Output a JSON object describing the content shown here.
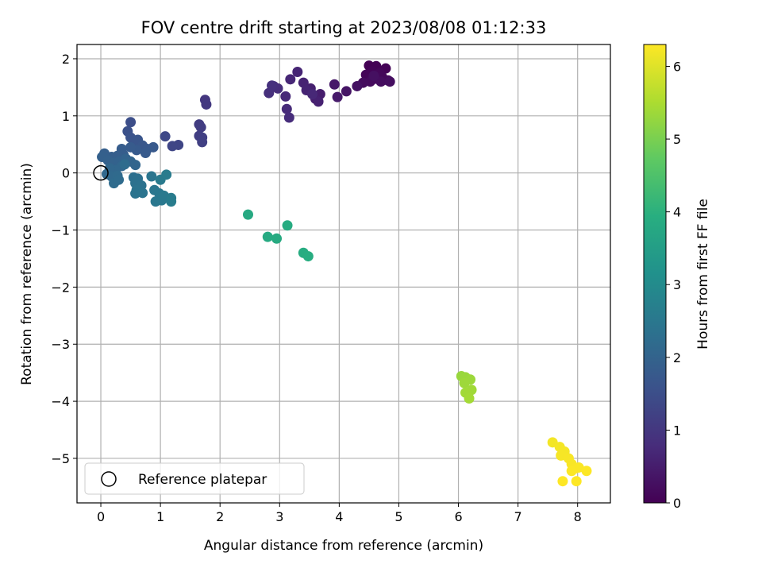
{
  "chart_data": {
    "type": "scatter",
    "title": "FOV centre drift starting at 2023/08/08 01:12:33",
    "xlabel": "Angular distance from reference (arcmin)",
    "ylabel": "Rotation from reference (arcmin)",
    "xlim": [
      -0.4,
      8.55
    ],
    "ylim": [
      -5.78,
      2.25
    ],
    "x_ticks": [
      0,
      1,
      2,
      3,
      4,
      5,
      6,
      7,
      8
    ],
    "y_ticks": [
      -5,
      -4,
      -3,
      -2,
      -1,
      0,
      1,
      2
    ],
    "grid": true,
    "colormap": "viridis",
    "colorbar": {
      "label": "Hours from first FF file",
      "range": [
        0,
        6.3
      ],
      "ticks": [
        0,
        1,
        2,
        3,
        4,
        5,
        6
      ]
    },
    "legend": {
      "placement": "lower-left",
      "entries": [
        {
          "label": "Reference platepar",
          "marker": "open-circle"
        }
      ]
    },
    "reference_point": {
      "x": 0,
      "y": 0
    },
    "points": [
      {
        "x": 4.5,
        "y": 1.88,
        "t": 0.0
      },
      {
        "x": 4.62,
        "y": 1.87,
        "t": 0.02
      },
      {
        "x": 4.78,
        "y": 1.83,
        "t": 0.04
      },
      {
        "x": 4.55,
        "y": 1.78,
        "t": 0.06
      },
      {
        "x": 4.45,
        "y": 1.72,
        "t": 0.08
      },
      {
        "x": 4.68,
        "y": 1.75,
        "t": 0.1
      },
      {
        "x": 4.72,
        "y": 1.68,
        "t": 0.12
      },
      {
        "x": 4.82,
        "y": 1.62,
        "t": 0.14
      },
      {
        "x": 4.6,
        "y": 1.65,
        "t": 0.16
      },
      {
        "x": 4.52,
        "y": 1.6,
        "t": 0.18
      },
      {
        "x": 4.4,
        "y": 1.58,
        "t": 0.2
      },
      {
        "x": 4.7,
        "y": 1.6,
        "t": 0.22
      },
      {
        "x": 4.85,
        "y": 1.6,
        "t": 0.24
      },
      {
        "x": 4.58,
        "y": 1.7,
        "t": 0.26
      },
      {
        "x": 4.3,
        "y": 1.52,
        "t": 0.3
      },
      {
        "x": 4.12,
        "y": 1.43,
        "t": 0.35
      },
      {
        "x": 3.92,
        "y": 1.55,
        "t": 0.4
      },
      {
        "x": 3.97,
        "y": 1.33,
        "t": 0.45
      },
      {
        "x": 3.68,
        "y": 1.38,
        "t": 0.5
      },
      {
        "x": 3.6,
        "y": 1.3,
        "t": 0.52
      },
      {
        "x": 3.52,
        "y": 1.48,
        "t": 0.55
      },
      {
        "x": 3.65,
        "y": 1.25,
        "t": 0.58
      },
      {
        "x": 3.4,
        "y": 1.58,
        "t": 0.6
      },
      {
        "x": 3.45,
        "y": 1.45,
        "t": 0.62
      },
      {
        "x": 3.3,
        "y": 1.77,
        "t": 0.65
      },
      {
        "x": 3.18,
        "y": 1.64,
        "t": 0.68
      },
      {
        "x": 3.55,
        "y": 1.38,
        "t": 0.7
      },
      {
        "x": 3.1,
        "y": 1.34,
        "t": 0.72
      },
      {
        "x": 3.12,
        "y": 1.12,
        "t": 0.75
      },
      {
        "x": 3.16,
        "y": 0.97,
        "t": 0.78
      },
      {
        "x": 2.97,
        "y": 1.48,
        "t": 0.8
      },
      {
        "x": 2.9,
        "y": 1.52,
        "t": 0.82
      },
      {
        "x": 2.82,
        "y": 1.4,
        "t": 0.85
      },
      {
        "x": 2.87,
        "y": 1.53,
        "t": 0.88
      },
      {
        "x": 1.75,
        "y": 1.28,
        "t": 1.0
      },
      {
        "x": 1.77,
        "y": 1.2,
        "t": 1.02
      },
      {
        "x": 1.65,
        "y": 0.85,
        "t": 1.1
      },
      {
        "x": 1.68,
        "y": 0.8,
        "t": 1.12
      },
      {
        "x": 1.65,
        "y": 0.65,
        "t": 1.15
      },
      {
        "x": 1.7,
        "y": 0.62,
        "t": 1.18
      },
      {
        "x": 1.7,
        "y": 0.54,
        "t": 1.2
      },
      {
        "x": 1.3,
        "y": 0.49,
        "t": 1.3
      },
      {
        "x": 1.2,
        "y": 0.47,
        "t": 1.33
      },
      {
        "x": 1.08,
        "y": 0.64,
        "t": 1.36
      },
      {
        "x": 0.5,
        "y": 0.89,
        "t": 1.5
      },
      {
        "x": 0.45,
        "y": 0.73,
        "t": 1.55
      },
      {
        "x": 0.5,
        "y": 0.62,
        "t": 1.6
      },
      {
        "x": 0.55,
        "y": 0.55,
        "t": 1.63
      },
      {
        "x": 0.62,
        "y": 0.58,
        "t": 1.66
      },
      {
        "x": 0.7,
        "y": 0.48,
        "t": 1.7
      },
      {
        "x": 0.78,
        "y": 0.42,
        "t": 1.72
      },
      {
        "x": 0.88,
        "y": 0.45,
        "t": 1.74
      },
      {
        "x": 0.75,
        "y": 0.35,
        "t": 1.76
      },
      {
        "x": 0.6,
        "y": 0.4,
        "t": 1.78
      },
      {
        "x": 0.5,
        "y": 0.45,
        "t": 1.8
      },
      {
        "x": 0.35,
        "y": 0.42,
        "t": 1.82
      },
      {
        "x": 0.38,
        "y": 0.32,
        "t": 1.84
      },
      {
        "x": 0.28,
        "y": 0.3,
        "t": 1.86
      },
      {
        "x": 0.18,
        "y": 0.28,
        "t": 1.88
      },
      {
        "x": 0.06,
        "y": 0.34,
        "t": 1.9
      },
      {
        "x": 0.02,
        "y": 0.28,
        "t": 1.92
      },
      {
        "x": 0.12,
        "y": 0.22,
        "t": 1.94
      },
      {
        "x": 0.22,
        "y": 0.18,
        "t": 1.96
      },
      {
        "x": 0.3,
        "y": 0.2,
        "t": 1.98
      },
      {
        "x": 0.42,
        "y": 0.25,
        "t": 2.0
      },
      {
        "x": 0.5,
        "y": 0.2,
        "t": 2.02
      },
      {
        "x": 0.58,
        "y": 0.14,
        "t": 2.04
      },
      {
        "x": 0.35,
        "y": 0.12,
        "t": 2.06
      },
      {
        "x": 0.25,
        "y": 0.05,
        "t": 2.08
      },
      {
        "x": 0.15,
        "y": 0.08,
        "t": 2.1
      },
      {
        "x": 0.1,
        "y": -0.02,
        "t": 2.12
      },
      {
        "x": 0.18,
        "y": -0.06,
        "t": 2.14
      },
      {
        "x": 0.28,
        "y": -0.05,
        "t": 2.16
      },
      {
        "x": 0.22,
        "y": -0.18,
        "t": 2.18
      },
      {
        "x": 0.3,
        "y": -0.12,
        "t": 2.2
      },
      {
        "x": 0.4,
        "y": 0.15,
        "t": 2.22
      },
      {
        "x": 0.55,
        "y": -0.08,
        "t": 2.3
      },
      {
        "x": 0.62,
        "y": -0.1,
        "t": 2.32
      },
      {
        "x": 0.58,
        "y": -0.18,
        "t": 2.34
      },
      {
        "x": 0.68,
        "y": -0.22,
        "t": 2.36
      },
      {
        "x": 0.6,
        "y": -0.3,
        "t": 2.38
      },
      {
        "x": 0.58,
        "y": -0.36,
        "t": 2.4
      },
      {
        "x": 0.7,
        "y": -0.35,
        "t": 2.42
      },
      {
        "x": 0.85,
        "y": -0.06,
        "t": 2.44
      },
      {
        "x": 0.9,
        "y": -0.3,
        "t": 2.46
      },
      {
        "x": 0.98,
        "y": -0.36,
        "t": 2.48
      },
      {
        "x": 0.92,
        "y": -0.5,
        "t": 2.5
      },
      {
        "x": 1.02,
        "y": -0.48,
        "t": 2.52
      },
      {
        "x": 1.06,
        "y": -0.4,
        "t": 2.54
      },
      {
        "x": 1.0,
        "y": -0.12,
        "t": 2.56
      },
      {
        "x": 1.1,
        "y": -0.03,
        "t": 2.58
      },
      {
        "x": 1.18,
        "y": -0.44,
        "t": 2.6
      },
      {
        "x": 1.18,
        "y": -0.5,
        "t": 2.62
      },
      {
        "x": 2.47,
        "y": -0.73,
        "t": 3.8
      },
      {
        "x": 2.8,
        "y": -1.12,
        "t": 3.82
      },
      {
        "x": 2.95,
        "y": -1.15,
        "t": 3.84
      },
      {
        "x": 3.13,
        "y": -0.92,
        "t": 3.86
      },
      {
        "x": 3.4,
        "y": -1.4,
        "t": 3.88
      },
      {
        "x": 3.48,
        "y": -1.46,
        "t": 3.9
      },
      {
        "x": 6.05,
        "y": -3.56,
        "t": 5.3
      },
      {
        "x": 6.12,
        "y": -3.58,
        "t": 5.32
      },
      {
        "x": 6.2,
        "y": -3.62,
        "t": 5.34
      },
      {
        "x": 6.1,
        "y": -3.68,
        "t": 5.36
      },
      {
        "x": 6.22,
        "y": -3.8,
        "t": 5.38
      },
      {
        "x": 6.12,
        "y": -3.85,
        "t": 5.4
      },
      {
        "x": 6.18,
        "y": -3.95,
        "t": 5.42
      },
      {
        "x": 7.58,
        "y": -4.72,
        "t": 6.2
      },
      {
        "x": 7.7,
        "y": -4.8,
        "t": 6.21
      },
      {
        "x": 7.78,
        "y": -4.88,
        "t": 6.22
      },
      {
        "x": 7.72,
        "y": -4.95,
        "t": 6.23
      },
      {
        "x": 7.85,
        "y": -5.0,
        "t": 6.24
      },
      {
        "x": 7.9,
        "y": -5.1,
        "t": 6.25
      },
      {
        "x": 7.95,
        "y": -5.18,
        "t": 6.26
      },
      {
        "x": 8.02,
        "y": -5.16,
        "t": 6.27
      },
      {
        "x": 7.9,
        "y": -5.22,
        "t": 6.28
      },
      {
        "x": 8.15,
        "y": -5.22,
        "t": 6.29
      },
      {
        "x": 7.75,
        "y": -5.4,
        "t": 6.3
      },
      {
        "x": 7.98,
        "y": -5.4,
        "t": 6.3
      }
    ]
  }
}
